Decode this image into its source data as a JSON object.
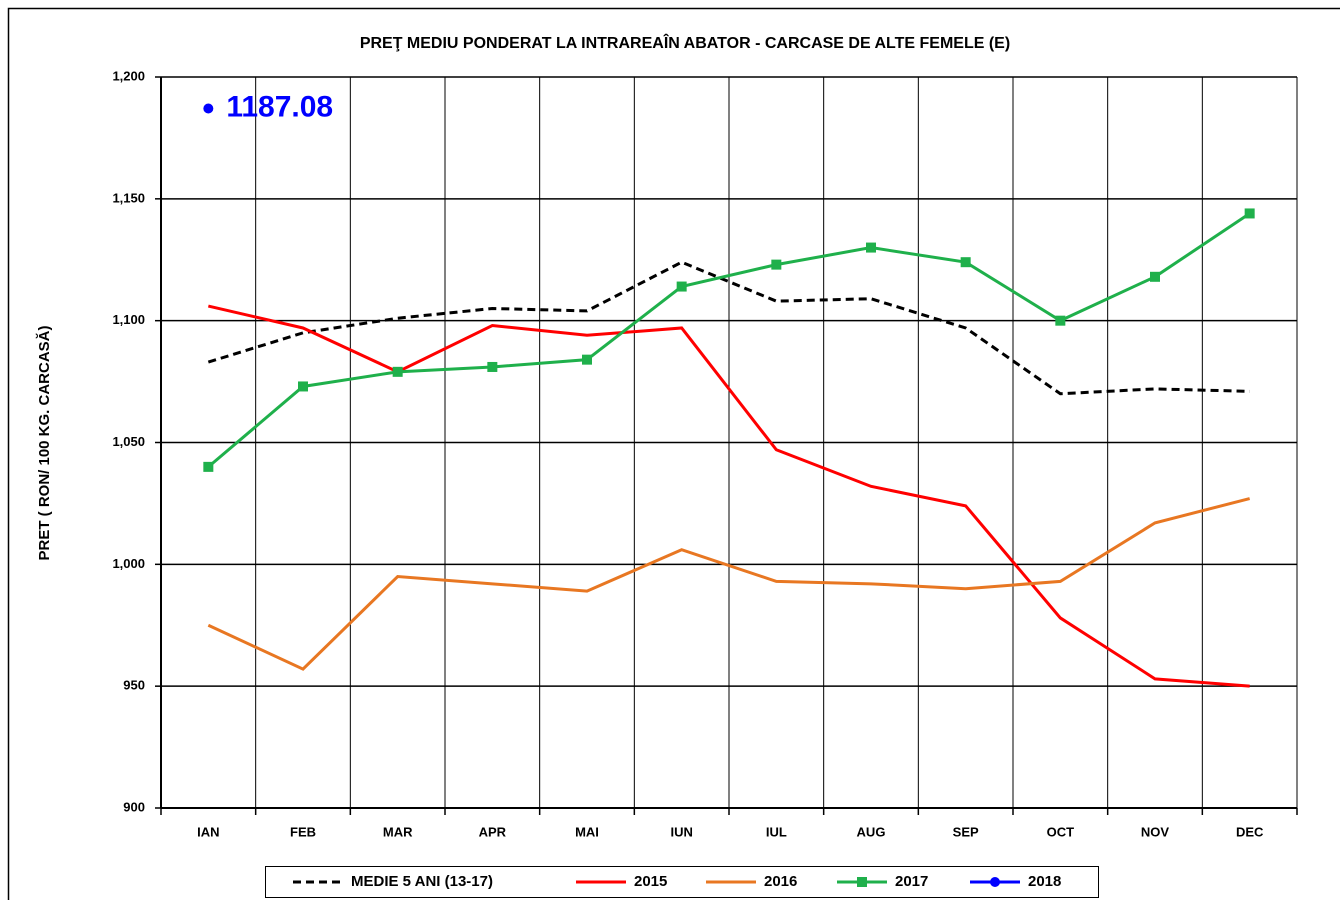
{
  "chart_data": {
    "type": "line",
    "title": "PREŢ MEDIU PONDERAT LA INTRAREAÎN ABATOR - CARCASE DE ALTE  FEMELE (E)",
    "y_label": "PRET ( RON/ 100 KG. CARCASĂ)",
    "categories": [
      "IAN",
      "FEB",
      "MAR",
      "APR",
      "MAI",
      "IUN",
      "IUL",
      "AUG",
      "SEP",
      "OCT",
      "NOV",
      "DEC"
    ],
    "series": [
      {
        "name": "MEDIE 5 ANI (13-17)",
        "color": "#000000",
        "dashed": true,
        "marker": "none",
        "values": [
          1083,
          1095,
          1101,
          1105,
          1104,
          1124,
          1108,
          1109,
          1097,
          1070,
          1072,
          1071
        ]
      },
      {
        "name": "2015",
        "color": "#ff0000",
        "dashed": false,
        "marker": "none",
        "values": [
          1106,
          1097,
          1079,
          1098,
          1094,
          1097,
          1047,
          1032,
          1024,
          978,
          953,
          950
        ]
      },
      {
        "name": "2016",
        "color": "#e87722",
        "dashed": false,
        "marker": "none",
        "values": [
          975,
          957,
          995,
          992,
          989,
          1006,
          993,
          992,
          990,
          993,
          1017,
          1027
        ]
      },
      {
        "name": "2017",
        "color": "#1fb04b",
        "dashed": false,
        "marker": "square",
        "values": [
          1040,
          1073,
          1079,
          1081,
          1084,
          1114,
          1123,
          1130,
          1124,
          1100,
          1118,
          1144
        ]
      },
      {
        "name": "2018",
        "color": "#0000ff",
        "dashed": false,
        "marker": "circle",
        "values": [
          1187.08,
          null,
          null,
          null,
          null,
          null,
          null,
          null,
          null,
          null,
          null,
          null
        ]
      }
    ],
    "ylim": [
      900,
      1200
    ],
    "yticks": [
      900,
      950,
      {
        "value": 1000,
        "label": "1,000"
      },
      {
        "value": 1050,
        "label": "1,050"
      },
      {
        "value": 1100,
        "label": "1,100"
      },
      {
        "value": 1150,
        "label": "1,150"
      },
      {
        "value": 1200,
        "label": "1,200"
      }
    ],
    "grid": true,
    "legend": "bottom"
  }
}
